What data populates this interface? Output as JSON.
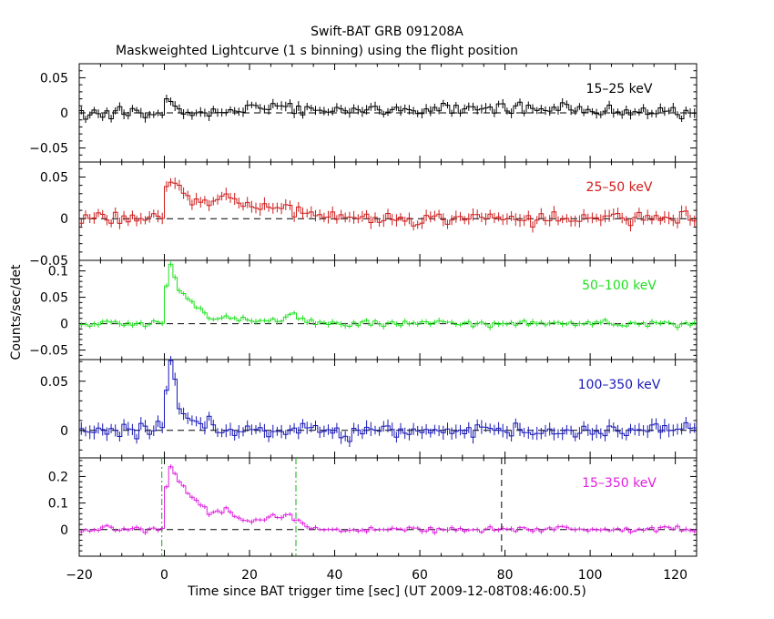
{
  "figure": {
    "title": "Swift-BAT GRB 091208A",
    "subtitle": "Maskweighted Lightcurve (1 s binning) using the flight position",
    "ylabel": "Counts/sec/det",
    "xlabel": "Time since BAT trigger time [sec] (UT 2009-12-08T08:46:00.5)"
  },
  "chart_data": {
    "type": "line",
    "style": "step",
    "xlim": [
      -20,
      125
    ],
    "xticks": [
      -20,
      0,
      20,
      40,
      60,
      80,
      100,
      120
    ],
    "xtick_labels": [
      "−20",
      "0",
      "20",
      "40",
      "60",
      "80",
      "100",
      "120"
    ],
    "grid": false,
    "zero_line": "dashed",
    "trigger_lines": [
      -0.6,
      30.9
    ],
    "end_line": 79.2,
    "seed": 91208,
    "panels": [
      {
        "label": "15–25 keV",
        "color": "#000000",
        "ylim": [
          -0.07,
          0.07
        ],
        "yticks": [
          0.05,
          0,
          -0.05
        ],
        "ytick_labels": [
          "0.05",
          "0",
          "−0.05"
        ],
        "noise": 0.0055,
        "background": 0.0,
        "features": [
          [
            0,
            0.024,
            5
          ],
          [
            4,
            0.0,
            10
          ],
          [
            14,
            0.004,
            12
          ],
          [
            27,
            0.009,
            6
          ],
          [
            30,
            0.002,
            6
          ],
          [
            97,
            0.008,
            4
          ]
        ]
      },
      {
        "label": "25–50 keV",
        "color": "#d01c1c",
        "ylim": [
          -0.05,
          0.068
        ],
        "yticks": [
          0.05,
          0,
          -0.05
        ],
        "ytick_labels": [
          "0.05",
          "0",
          "−0.05"
        ],
        "noise": 0.006,
        "background": 0.0,
        "features": [
          [
            0,
            0.035,
            2
          ],
          [
            1.5,
            0.055,
            1
          ],
          [
            4,
            0.025,
            3
          ],
          [
            8,
            0.02,
            6
          ],
          [
            15,
            0.026,
            2
          ],
          [
            20,
            0.012,
            5
          ],
          [
            28,
            0.012,
            4
          ],
          [
            32,
            0.006,
            6
          ]
        ]
      },
      {
        "label": "50–100 keV",
        "color": "#20e020",
        "ylim": [
          -0.068,
          0.12
        ],
        "yticks": [
          0.1,
          0.05,
          0,
          -0.05
        ],
        "ytick_labels": [
          "0.1",
          "0.05",
          "0",
          "−0.05"
        ],
        "noise": 0.0045,
        "background": 0.0,
        "features": [
          [
            0,
            0.075,
            1
          ],
          [
            1,
            0.11,
            1
          ],
          [
            3,
            0.06,
            3
          ],
          [
            6,
            0.04,
            4
          ],
          [
            10,
            0.01,
            4
          ],
          [
            15,
            0.012,
            6
          ],
          [
            22,
            0.005,
            6
          ],
          [
            30,
            0.014,
            5
          ],
          [
            34,
            0.003,
            6
          ]
        ]
      },
      {
        "label": "100–350 keV",
        "color": "#1818b8",
        "ylim": [
          -0.028,
          0.072
        ],
        "yticks": [
          0.05,
          0
        ],
        "ytick_labels": [
          "0.05",
          "0"
        ],
        "noise": 0.0055,
        "background": 0.0,
        "features": [
          [
            0,
            0.035,
            1
          ],
          [
            1,
            0.065,
            1
          ],
          [
            3,
            0.025,
            3
          ],
          [
            6,
            0.01,
            4
          ],
          [
            12,
            0.0,
            6
          ]
        ]
      },
      {
        "label": "15–350 keV",
        "color": "#e020e0",
        "ylim": [
          -0.1,
          0.27
        ],
        "yticks": [
          0.2,
          0.1,
          0
        ],
        "ytick_labels": [
          "0.2",
          "0.1",
          "0"
        ],
        "noise": 0.0075,
        "background": 0.0,
        "features": [
          [
            0,
            0.16,
            1
          ],
          [
            1,
            0.24,
            1
          ],
          [
            3,
            0.18,
            3
          ],
          [
            6,
            0.12,
            4
          ],
          [
            10,
            0.06,
            4
          ],
          [
            14,
            0.07,
            5
          ],
          [
            20,
            0.03,
            6
          ],
          [
            29,
            0.06,
            3
          ],
          [
            32,
            0.015,
            5
          ],
          [
            36,
            0.0,
            6
          ]
        ]
      }
    ]
  }
}
